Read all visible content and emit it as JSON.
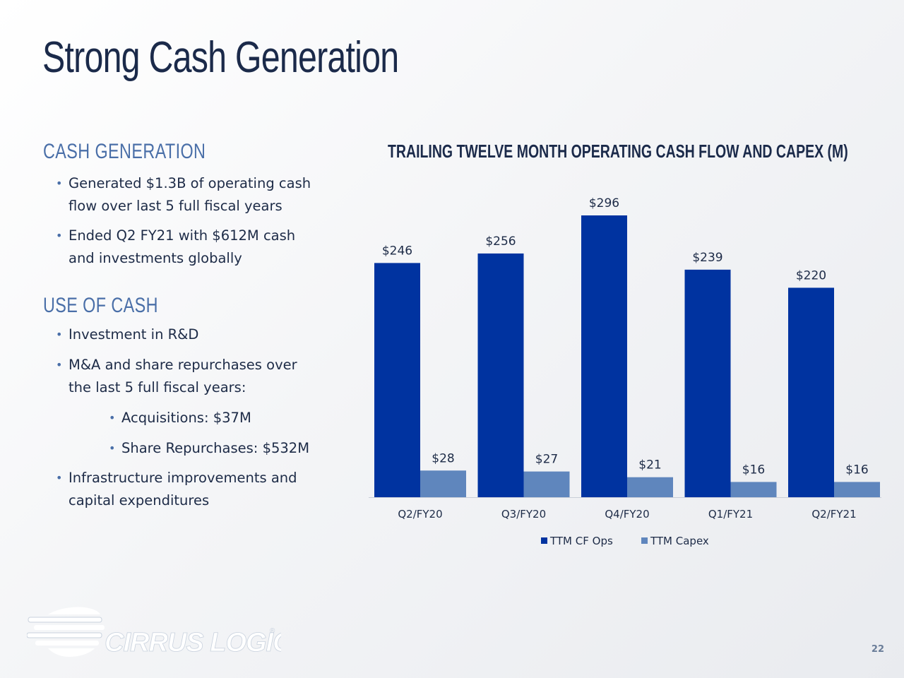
{
  "slide": {
    "title": "Strong Cash Generation",
    "page_number": "22"
  },
  "left": {
    "section1_heading": "CASH GENERATION",
    "section1_bullets": [
      [
        "Generated $1.3B of operating cash",
        "flow over last 5 full fiscal years"
      ],
      [
        "Ended Q2 FY21 with $612M cash",
        "and investments globally"
      ]
    ],
    "section2_heading": "USE OF CASH",
    "section2_bullets": [
      [
        "Investment in R&D"
      ],
      [
        "M&A and share repurchases over",
        "the last 5 full fiscal years:"
      ]
    ],
    "section2_sub_bullets": [
      "Acquisitions: $37M",
      "Share Repurchases: $532M"
    ],
    "section2_bullets_after": [
      [
        "Infrastructure improvements and",
        "capital expenditures"
      ]
    ]
  },
  "logo": {
    "text": "CIRRUS LOGIC",
    "mark": "®"
  },
  "chart_data": {
    "type": "bar",
    "title": "TRAILING TWELVE MONTH OPERATING CASH FLOW AND CAPEX (M)",
    "categories": [
      "Q2/FY20",
      "Q3/FY20",
      "Q4/FY20",
      "Q1/FY21",
      "Q2/FY21"
    ],
    "series": [
      {
        "name": "TTM CF Ops",
        "values": [
          246,
          256,
          296,
          239,
          220
        ],
        "labels": [
          "$246",
          "$256",
          "$296",
          "$239",
          "$220"
        ],
        "color": "#0033a0"
      },
      {
        "name": "TTM Capex",
        "values": [
          28,
          27,
          21,
          16,
          16
        ],
        "labels": [
          "$28",
          "$27",
          "$21",
          "$16",
          "$16"
        ],
        "color": "#5f86bd"
      }
    ],
    "ylim": [
      0,
      296
    ],
    "grid": false,
    "legend_position": "bottom"
  }
}
